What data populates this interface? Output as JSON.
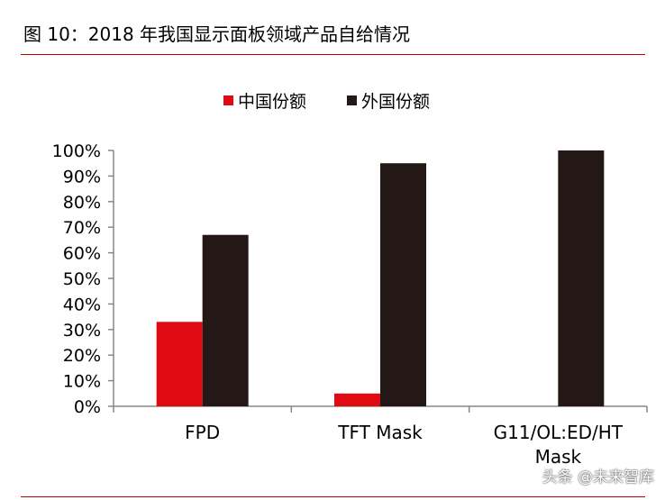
{
  "figure_title": "图 10：2018 年我国显示面板领域产品自给情况",
  "watermark": "头条 @未来智库",
  "colors": {
    "china": "#e00b12",
    "foreign": "#231815",
    "accent_rule": "#c00000"
  },
  "chart_data": {
    "type": "bar",
    "categories": [
      "FPD",
      "TFT Mask",
      "G11/OL:ED/HT Mask"
    ],
    "category_label_lines": [
      [
        "FPD"
      ],
      [
        "TFT Mask"
      ],
      [
        "G11/OL:ED/HT",
        "Mask"
      ]
    ],
    "series": [
      {
        "name": "中国份额",
        "values": [
          33,
          5,
          0
        ]
      },
      {
        "name": "外国份额",
        "values": [
          67,
          95,
          100
        ]
      }
    ],
    "ylim": [
      0,
      100
    ],
    "yticks": [
      "0%",
      "10%",
      "20%",
      "30%",
      "40%",
      "50%",
      "60%",
      "70%",
      "80%",
      "90%",
      "100%"
    ],
    "ytick_values": [
      0,
      10,
      20,
      30,
      40,
      50,
      60,
      70,
      80,
      90,
      100
    ],
    "xlabel": "",
    "ylabel": "",
    "grid": false,
    "legend_position": "top-center"
  }
}
